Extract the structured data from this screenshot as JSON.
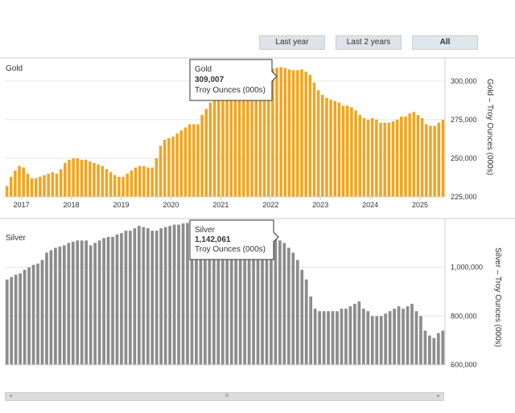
{
  "range_buttons": [
    {
      "label": "Last year"
    },
    {
      "label": "Last 2 years"
    },
    {
      "label": "All"
    }
  ],
  "colors": {
    "gold": "#f5a31c",
    "silver": "#8c8c8c",
    "grid": "#e6e6e6",
    "axis": "#cccccc"
  },
  "chart_data": [
    {
      "type": "bar",
      "title": "Gold",
      "ylabel": "Gold – Troy Ounces (000s)",
      "ylim": [
        225000,
        315000
      ],
      "yticks": [
        "225,000",
        "250,000",
        "275,000",
        "300,000"
      ],
      "ytick_values": [
        225000,
        250000,
        275000,
        300000
      ],
      "xticks": [
        "2017",
        "2018",
        "2019",
        "2020",
        "2021",
        "2022",
        "2023",
        "2024",
        "2025"
      ],
      "values": [
        232000,
        238000,
        242000,
        245000,
        244000,
        240000,
        237000,
        237000,
        238000,
        239000,
        240000,
        241000,
        240000,
        243000,
        247000,
        249000,
        250000,
        250000,
        249000,
        249000,
        248000,
        247000,
        246000,
        245000,
        243000,
        241000,
        239000,
        238000,
        238000,
        240000,
        242000,
        244000,
        245000,
        245000,
        244000,
        244000,
        250000,
        258000,
        262000,
        263000,
        264000,
        266000,
        268000,
        270000,
        272000,
        272000,
        272000,
        278000,
        282000,
        286000,
        291000,
        294000,
        297000,
        299000,
        300000,
        301000,
        302000,
        303000,
        304000,
        305000,
        306000,
        306500,
        307000,
        307500,
        308000,
        308500,
        309007,
        308500,
        307500,
        307000,
        307000,
        307500,
        306000,
        304000,
        299000,
        294000,
        291000,
        289000,
        288000,
        287000,
        286000,
        284000,
        284000,
        283000,
        281000,
        278000,
        276000,
        275000,
        276000,
        275000,
        273000,
        273000,
        273000,
        274000,
        275000,
        277000,
        277000,
        279000,
        280000,
        278000,
        276000,
        272000,
        271000,
        271000,
        273000,
        275000
      ],
      "tooltip": {
        "series": "Gold",
        "value": "309,007",
        "unit": "Troy Ounces (000s)"
      }
    },
    {
      "type": "bar",
      "title": "Silver",
      "ylabel": "Silver – Troy Ounces (000s)",
      "ylim": [
        600000,
        1200000
      ],
      "yticks": [
        "600,000",
        "800,000",
        "1,000,000"
      ],
      "ytick_values": [
        600000,
        800000,
        1000000
      ],
      "values": [
        950000,
        960000,
        970000,
        975000,
        990000,
        1000000,
        1010000,
        1015000,
        1030000,
        1060000,
        1070000,
        1080000,
        1085000,
        1090000,
        1100000,
        1105000,
        1110000,
        1110000,
        1110000,
        1090000,
        1100000,
        1110000,
        1120000,
        1125000,
        1125000,
        1135000,
        1140000,
        1150000,
        1150000,
        1160000,
        1170000,
        1165000,
        1160000,
        1150000,
        1150000,
        1160000,
        1165000,
        1170000,
        1175000,
        1175000,
        1180000,
        1182000,
        1180000,
        1178000,
        1175000,
        1172000,
        1170000,
        1160000,
        1150000,
        1145000,
        1140000,
        1135000,
        1142061,
        1150000,
        1160000,
        1170000,
        1175000,
        1170000,
        1160000,
        1140000,
        1130000,
        1120000,
        1110000,
        1100000,
        1080000,
        1060000,
        1030000,
        990000,
        950000,
        880000,
        830000,
        820000,
        820000,
        820000,
        820000,
        820000,
        830000,
        830000,
        840000,
        850000,
        860000,
        830000,
        820000,
        800000,
        800000,
        800000,
        810000,
        820000,
        830000,
        840000,
        830000,
        840000,
        850000,
        820000,
        800000,
        740000,
        720000,
        710000,
        730000,
        740000
      ],
      "tooltip": {
        "series": "Silver",
        "value": "1,142,061",
        "unit": "Troy Ounces (000s)"
      }
    }
  ],
  "scrollbar": {
    "left_arrow": "◂",
    "right_arrow": "▸",
    "grip": "III"
  }
}
